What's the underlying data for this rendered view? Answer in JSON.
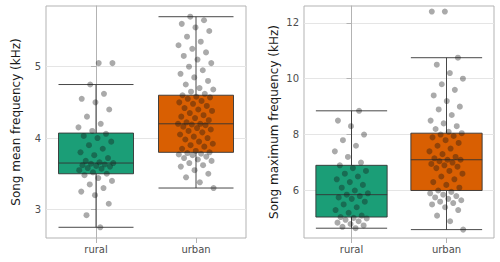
{
  "chart_data": [
    {
      "type": "boxplot",
      "ylabel": "Song mean frequency (kHz)",
      "categories": [
        "rural",
        "urban"
      ],
      "ylim": [
        2.6,
        5.85
      ],
      "yticks": [
        3,
        4,
        5
      ],
      "grid": true,
      "series": [
        {
          "name": "rural",
          "color": "#1b9e77",
          "box": [
            2.75,
            3.5,
            3.65,
            4.07,
            4.75
          ],
          "points": [
            2.75,
            2.92,
            3.08,
            3.2,
            3.25,
            3.3,
            3.35,
            3.4,
            3.44,
            3.48,
            3.5,
            3.52,
            3.55,
            3.57,
            3.58,
            3.6,
            3.61,
            3.62,
            3.63,
            3.64,
            3.65,
            3.66,
            3.68,
            3.72,
            3.76,
            3.8,
            3.85,
            3.9,
            3.95,
            4.0,
            4.03,
            4.06,
            4.1,
            4.15,
            4.2,
            4.3,
            4.4,
            4.5,
            4.55,
            4.62,
            4.75,
            5.05,
            5.05
          ]
        },
        {
          "name": "urban",
          "color": "#d95f02",
          "box": [
            3.3,
            3.8,
            4.2,
            4.6,
            5.7
          ],
          "points": [
            3.3,
            3.38,
            3.45,
            3.5,
            3.55,
            3.6,
            3.62,
            3.65,
            3.68,
            3.7,
            3.72,
            3.74,
            3.76,
            3.77,
            3.78,
            3.79,
            3.8,
            3.82,
            3.85,
            3.88,
            3.9,
            3.92,
            3.95,
            3.98,
            4.0,
            4.02,
            4.05,
            4.08,
            4.1,
            4.12,
            4.14,
            4.16,
            4.18,
            4.19,
            4.2,
            4.2,
            4.22,
            4.25,
            4.28,
            4.3,
            4.32,
            4.35,
            4.38,
            4.4,
            4.42,
            4.45,
            4.48,
            4.5,
            4.52,
            4.55,
            4.57,
            4.58,
            4.6,
            4.62,
            4.65,
            4.68,
            4.7,
            4.75,
            4.8,
            4.85,
            4.9,
            4.95,
            5.0,
            5.05,
            5.1,
            5.15,
            5.2,
            5.25,
            5.3,
            5.35,
            5.42,
            5.5,
            5.55,
            5.6,
            5.65,
            5.7
          ]
        }
      ]
    },
    {
      "type": "boxplot",
      "ylabel": "Song maximum frequency (kHz)",
      "categories": [
        "rural",
        "urban"
      ],
      "ylim": [
        4.3,
        12.6
      ],
      "yticks": [
        6,
        8,
        10,
        12
      ],
      "grid": true,
      "series": [
        {
          "name": "rural",
          "color": "#1b9e77",
          "box": [
            4.65,
            5.05,
            5.85,
            6.9,
            8.85
          ],
          "points": [
            4.65,
            4.7,
            4.75,
            4.8,
            4.85,
            4.9,
            4.95,
            5.0,
            5.02,
            5.05,
            5.1,
            5.2,
            5.3,
            5.4,
            5.5,
            5.6,
            5.7,
            5.75,
            5.8,
            5.85,
            5.9,
            6.0,
            6.1,
            6.2,
            6.3,
            6.4,
            6.5,
            6.6,
            6.7,
            6.8,
            6.9,
            7.0,
            7.2,
            7.4,
            7.6,
            7.8,
            8.0,
            8.3,
            8.5,
            8.85
          ]
        },
        {
          "name": "urban",
          "color": "#d95f02",
          "box": [
            4.6,
            6.0,
            7.1,
            8.05,
            10.75
          ],
          "points": [
            4.6,
            4.9,
            5.1,
            5.3,
            5.4,
            5.5,
            5.55,
            5.6,
            5.65,
            5.7,
            5.75,
            5.8,
            5.85,
            5.9,
            5.95,
            6.0,
            6.1,
            6.2,
            6.3,
            6.4,
            6.5,
            6.6,
            6.7,
            6.8,
            6.85,
            6.9,
            6.95,
            7.0,
            7.05,
            7.1,
            7.1,
            7.15,
            7.2,
            7.3,
            7.4,
            7.5,
            7.6,
            7.7,
            7.8,
            7.9,
            7.95,
            8.0,
            8.05,
            8.1,
            8.2,
            8.3,
            8.4,
            8.5,
            8.7,
            8.9,
            9.0,
            9.2,
            9.4,
            9.6,
            9.8,
            10.0,
            10.2,
            10.5,
            10.75,
            12.4,
            12.4
          ]
        }
      ]
    }
  ]
}
